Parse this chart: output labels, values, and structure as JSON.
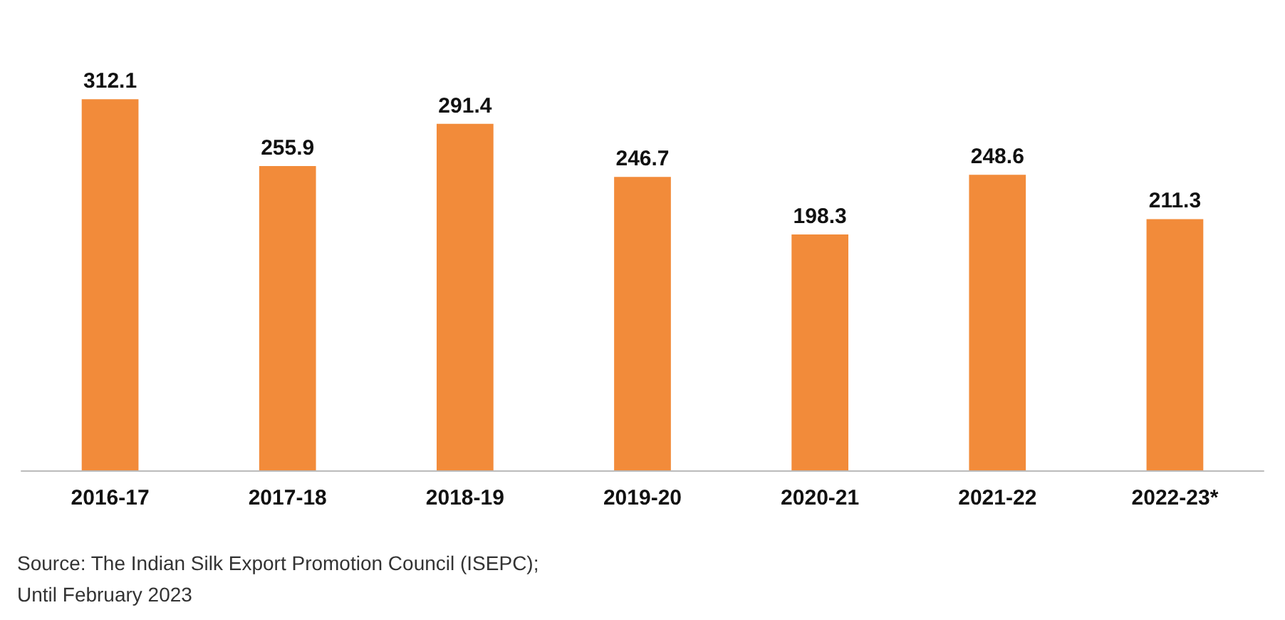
{
  "chart_data": {
    "type": "bar",
    "categories": [
      "2016-17",
      "2017-18",
      "2018-19",
      "2019-20",
      "2020-21",
      "2021-22",
      "2022-23*"
    ],
    "values": [
      312.1,
      255.9,
      291.4,
      246.7,
      198.3,
      248.6,
      211.3
    ],
    "color": "#f28b3a",
    "data_labels": true,
    "annotations": [
      "Source: The Indian Silk Export Promotion Council (ISEPC);",
      "Until February 2023"
    ]
  }
}
